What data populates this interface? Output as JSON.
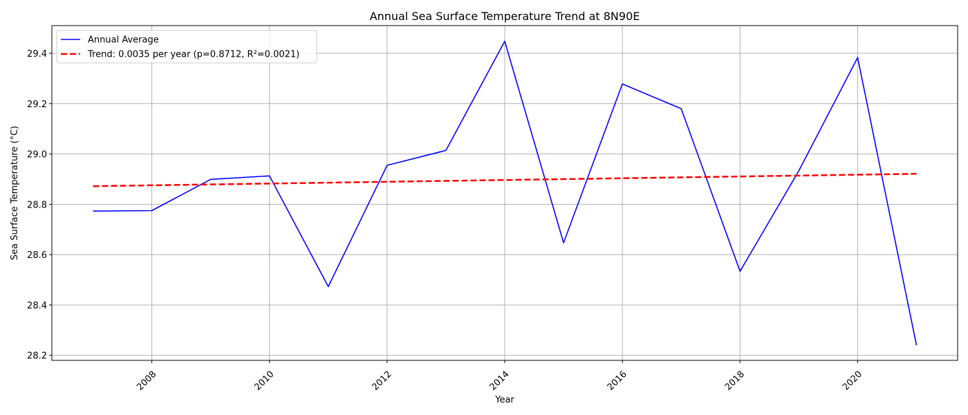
{
  "chart_data": {
    "type": "line",
    "title": "Annual Sea Surface Temperature Trend at 8N90E",
    "xlabel": "Year",
    "ylabel": "Sea Surface Temperature (°C)",
    "xlim": [
      2006.3,
      2021.7
    ],
    "ylim": [
      28.18,
      29.51
    ],
    "xticks": [
      2008,
      2010,
      2012,
      2014,
      2016,
      2018,
      2020
    ],
    "yticks": [
      28.2,
      28.4,
      28.6,
      28.8,
      29.0,
      29.2,
      29.4
    ],
    "ytick_labels": [
      "28.2",
      "28.4",
      "28.6",
      "28.8",
      "29.0",
      "29.2",
      "29.4"
    ],
    "grid": true,
    "legend_position": "top-left",
    "series": [
      {
        "name": "Annual Average",
        "style": "solid",
        "color": "#0000ff",
        "x": [
          2007,
          2008,
          2009,
          2010,
          2011,
          2012,
          2013,
          2014,
          2015,
          2016,
          2017,
          2018,
          2019,
          2020,
          2021
        ],
        "y": [
          28.773,
          28.775,
          28.899,
          28.913,
          28.473,
          28.955,
          29.014,
          29.448,
          28.647,
          29.278,
          29.18,
          28.534,
          28.933,
          29.383,
          28.24
        ]
      },
      {
        "name": "Trend: 0.0035 per year (p=0.8712, R²=0.0021)",
        "style": "dashed",
        "color": "#ff0000",
        "x": [
          2007,
          2021
        ],
        "y": [
          28.872,
          28.921
        ]
      }
    ]
  }
}
